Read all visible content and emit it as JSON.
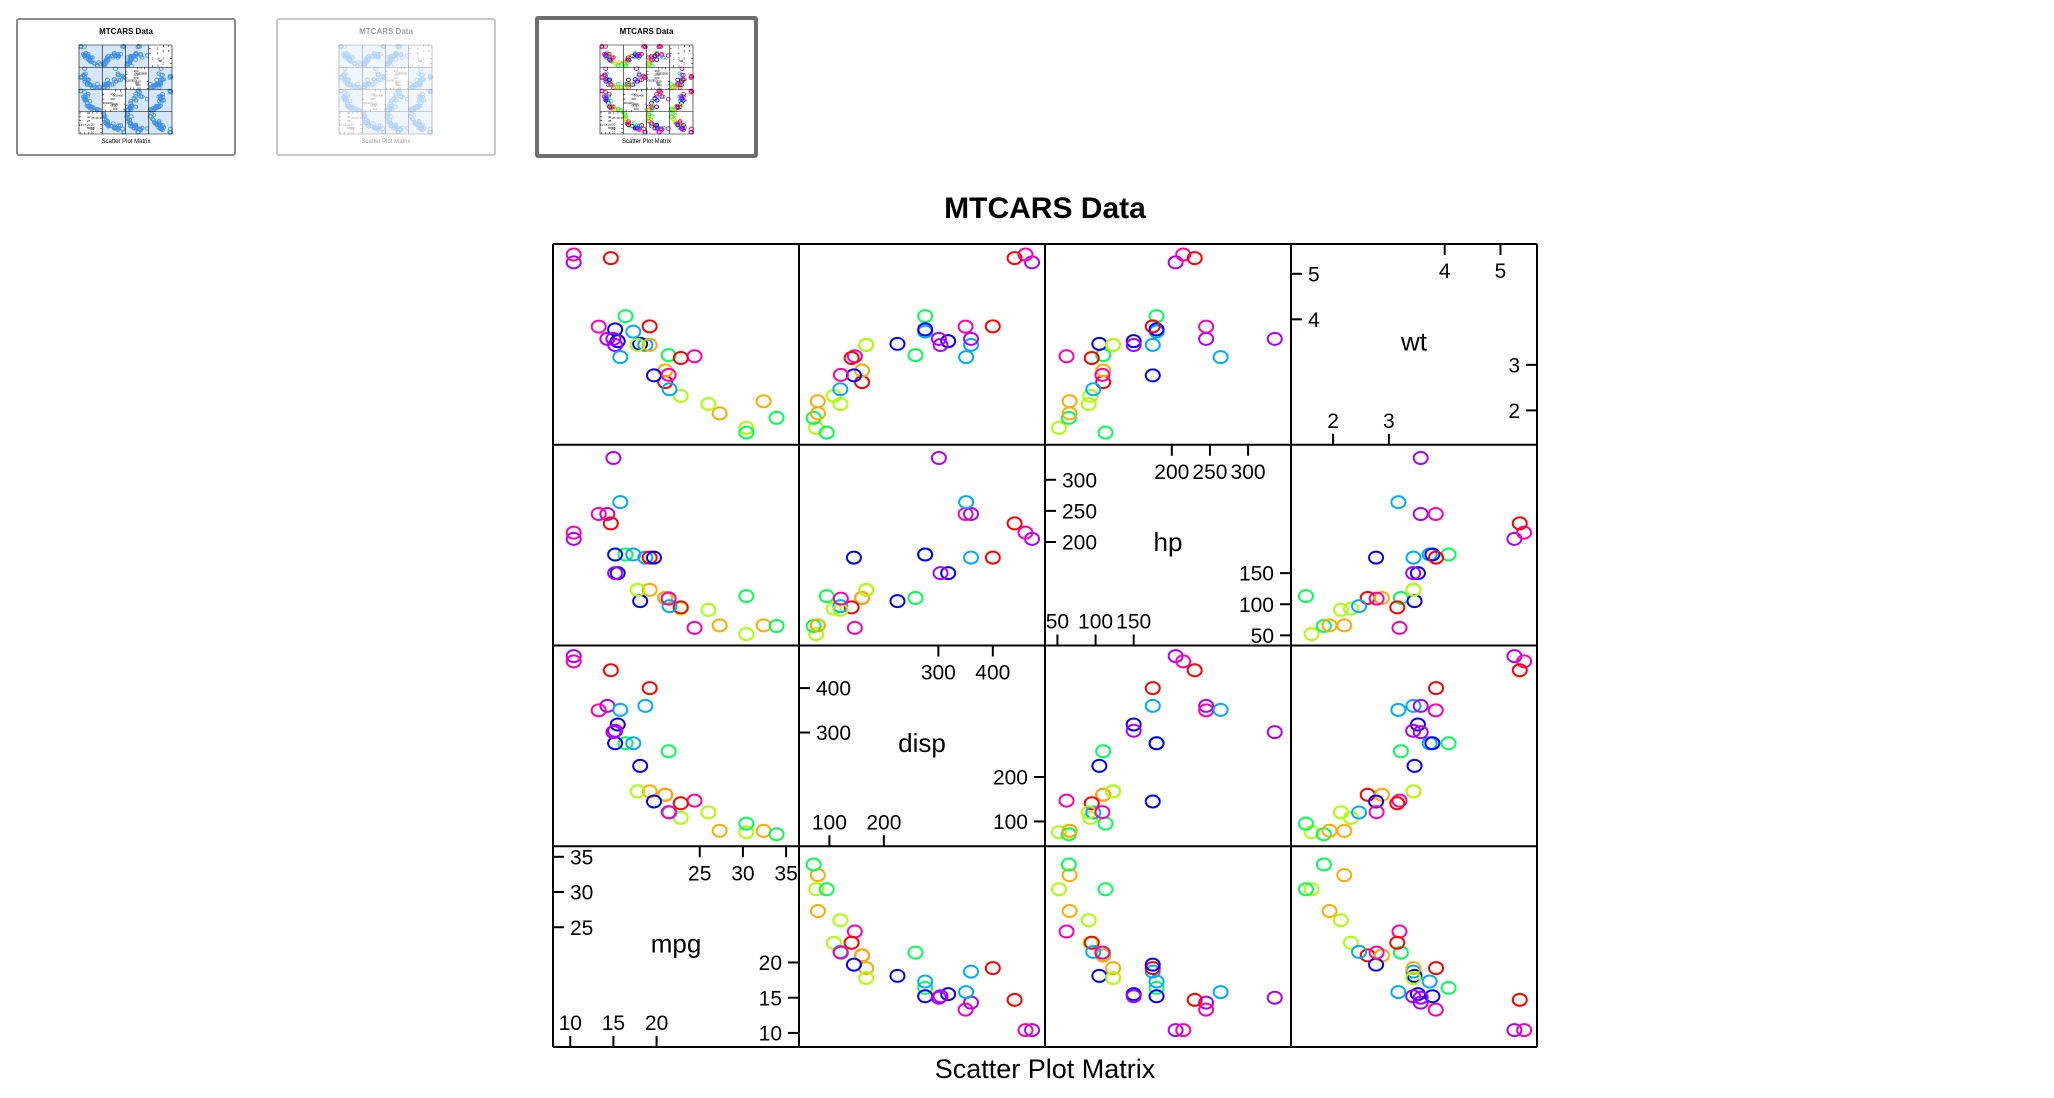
{
  "thumbnails": [
    {
      "title": "MTCARS Data",
      "subtitle": "Scatter Plot Matrix",
      "style": "blue",
      "state": "normal"
    },
    {
      "title": "MTCARS Data",
      "subtitle": "Scatter Plot Matrix",
      "style": "blue",
      "state": "faded"
    },
    {
      "title": "MTCARS Data",
      "subtitle": "Scatter Plot Matrix",
      "style": "rainbow",
      "state": "selected"
    }
  ],
  "chart_data": {
    "type": "scatter",
    "title": "MTCARS Data",
    "xlabel": "Scatter Plot Matrix",
    "variables": [
      "mpg",
      "disp",
      "hp",
      "wt"
    ],
    "ranges": {
      "mpg": [
        9,
        35.5
      ],
      "disp": [
        60,
        480
      ],
      "hp": [
        45,
        345
      ],
      "wt": [
        1.4,
        5.5
      ]
    },
    "ticks": {
      "mpg": {
        "low": [
          10,
          15,
          20
        ],
        "high": [
          25,
          30,
          35
        ]
      },
      "disp": {
        "low": [
          100,
          200
        ],
        "high": [
          300,
          400
        ]
      },
      "hp": {
        "low": [
          50,
          100,
          150
        ],
        "high": [
          200,
          250,
          300
        ]
      },
      "wt": {
        "low": [
          2,
          3
        ],
        "high": [
          4,
          5
        ]
      }
    },
    "colors": [
      "#ff0000",
      "#ffaa00",
      "#aaff00",
      "#00ff55",
      "#00aaff",
      "#0000ff",
      "#aa00ff",
      "#ff00aa"
    ],
    "records": [
      {
        "mpg": 21.0,
        "disp": 160,
        "hp": 110,
        "wt": 2.62
      },
      {
        "mpg": 21.0,
        "disp": 160,
        "hp": 110,
        "wt": 2.875
      },
      {
        "mpg": 22.8,
        "disp": 108,
        "hp": 93,
        "wt": 2.32
      },
      {
        "mpg": 21.4,
        "disp": 258,
        "hp": 110,
        "wt": 3.215
      },
      {
        "mpg": 18.7,
        "disp": 360,
        "hp": 175,
        "wt": 3.44
      },
      {
        "mpg": 18.1,
        "disp": 225,
        "hp": 105,
        "wt": 3.46
      },
      {
        "mpg": 14.3,
        "disp": 360,
        "hp": 245,
        "wt": 3.57
      },
      {
        "mpg": 24.4,
        "disp": 146.7,
        "hp": 62,
        "wt": 3.19
      },
      {
        "mpg": 22.8,
        "disp": 140.8,
        "hp": 95,
        "wt": 3.15
      },
      {
        "mpg": 19.2,
        "disp": 167.6,
        "hp": 123,
        "wt": 3.44
      },
      {
        "mpg": 17.8,
        "disp": 167.6,
        "hp": 123,
        "wt": 3.44
      },
      {
        "mpg": 16.4,
        "disp": 275.8,
        "hp": 180,
        "wt": 4.07
      },
      {
        "mpg": 17.3,
        "disp": 275.8,
        "hp": 180,
        "wt": 3.73
      },
      {
        "mpg": 15.2,
        "disp": 275.8,
        "hp": 180,
        "wt": 3.78
      },
      {
        "mpg": 10.4,
        "disp": 472,
        "hp": 205,
        "wt": 5.25
      },
      {
        "mpg": 10.4,
        "disp": 460,
        "hp": 215,
        "wt": 5.424
      },
      {
        "mpg": 14.7,
        "disp": 440,
        "hp": 230,
        "wt": 5.345
      },
      {
        "mpg": 32.4,
        "disp": 78.7,
        "hp": 66,
        "wt": 2.2
      },
      {
        "mpg": 30.4,
        "disp": 75.7,
        "hp": 52,
        "wt": 1.615
      },
      {
        "mpg": 33.9,
        "disp": 71.1,
        "hp": 65,
        "wt": 1.835
      },
      {
        "mpg": 21.5,
        "disp": 120.1,
        "hp": 97,
        "wt": 2.465
      },
      {
        "mpg": 15.5,
        "disp": 318,
        "hp": 150,
        "wt": 3.52
      },
      {
        "mpg": 15.2,
        "disp": 304,
        "hp": 150,
        "wt": 3.435
      },
      {
        "mpg": 13.3,
        "disp": 350,
        "hp": 245,
        "wt": 3.84
      },
      {
        "mpg": 19.2,
        "disp": 400,
        "hp": 175,
        "wt": 3.845
      },
      {
        "mpg": 27.3,
        "disp": 79,
        "hp": 66,
        "wt": 1.935
      },
      {
        "mpg": 26.0,
        "disp": 120.3,
        "hp": 91,
        "wt": 2.14
      },
      {
        "mpg": 30.4,
        "disp": 95.1,
        "hp": 113,
        "wt": 1.513
      },
      {
        "mpg": 15.8,
        "disp": 351,
        "hp": 264,
        "wt": 3.17
      },
      {
        "mpg": 19.7,
        "disp": 145,
        "hp": 175,
        "wt": 2.77
      },
      {
        "mpg": 15.0,
        "disp": 301,
        "hp": 335,
        "wt": 3.57
      },
      {
        "mpg": 21.4,
        "disp": 121,
        "hp": 109,
        "wt": 2.78
      }
    ]
  }
}
